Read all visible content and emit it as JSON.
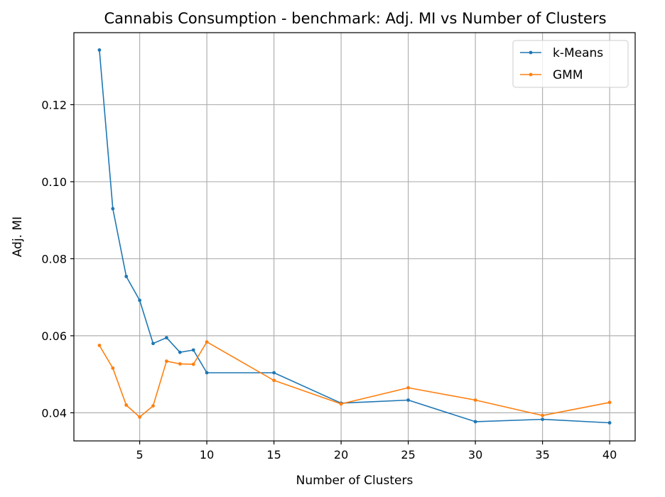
{
  "chart_data": {
    "type": "line",
    "title": "Cannabis Consumption - benchmark: Adj. MI vs Number of Clusters",
    "xlabel": "Number of Clusters",
    "ylabel": "Adj. MI",
    "x": [
      2,
      3,
      4,
      5,
      6,
      7,
      8,
      9,
      10,
      15,
      20,
      25,
      30,
      35,
      40
    ],
    "xlim": [
      0.1,
      41.9
    ],
    "ylim": [
      0.0327,
      0.1387
    ],
    "xticks": [
      5,
      10,
      15,
      20,
      25,
      30,
      35,
      40
    ],
    "yticks": [
      0.04,
      0.06,
      0.08,
      0.1,
      0.12
    ],
    "grid": true,
    "legend_position": "top-right",
    "series": [
      {
        "name": "k-Means",
        "color": "#1f77b4",
        "values": [
          0.1342,
          0.093,
          0.0754,
          0.0692,
          0.058,
          0.0595,
          0.0557,
          0.0563,
          0.0504,
          0.0504,
          0.0425,
          0.0433,
          0.0377,
          0.0383,
          0.0374
        ]
      },
      {
        "name": "GMM",
        "color": "#ff7f0e",
        "values": [
          0.0575,
          0.0516,
          0.042,
          0.0389,
          0.0418,
          0.0534,
          0.0527,
          0.0526,
          0.0584,
          0.0484,
          0.0423,
          0.0465,
          0.0433,
          0.0393,
          0.0427
        ]
      }
    ]
  }
}
